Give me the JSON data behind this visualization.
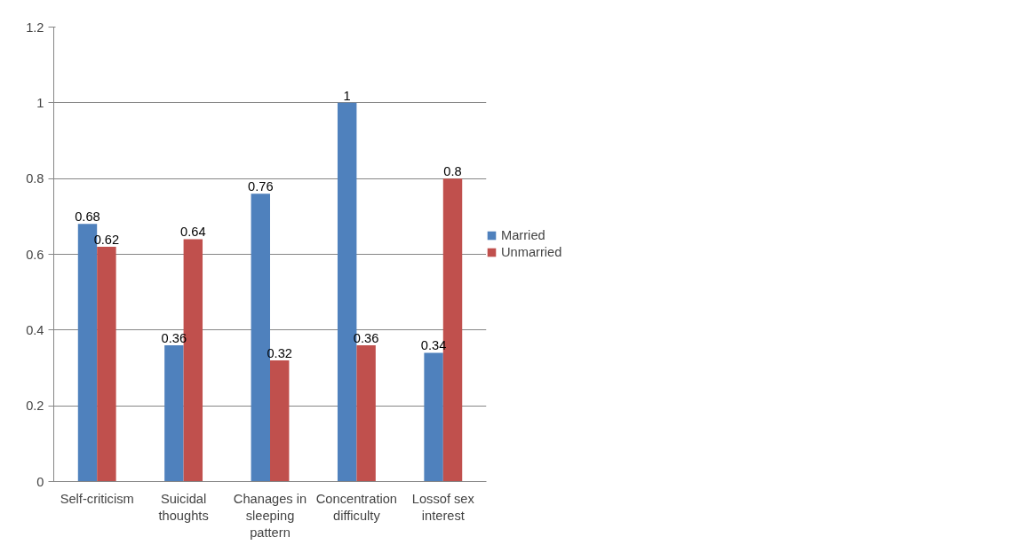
{
  "chart_data": {
    "type": "bar",
    "categories": [
      "Self-criticism",
      "Suicidal thoughts",
      "Chanages in sleeping pattern",
      "Concentration difficulty",
      "Lossof sex interest"
    ],
    "series": [
      {
        "name": "Married",
        "color": "#4f81bd",
        "values": [
          0.68,
          0.36,
          0.76,
          1,
          0.34
        ]
      },
      {
        "name": "Unmarried",
        "color": "#c0504d",
        "values": [
          0.62,
          0.64,
          0.32,
          0.36,
          0.8
        ]
      }
    ],
    "ylim": [
      0,
      1.2
    ],
    "yticks": [
      0,
      0.2,
      0.4,
      0.6,
      0.8,
      1,
      1.2
    ],
    "grid": "y",
    "legend": "right",
    "data_labels": true
  }
}
